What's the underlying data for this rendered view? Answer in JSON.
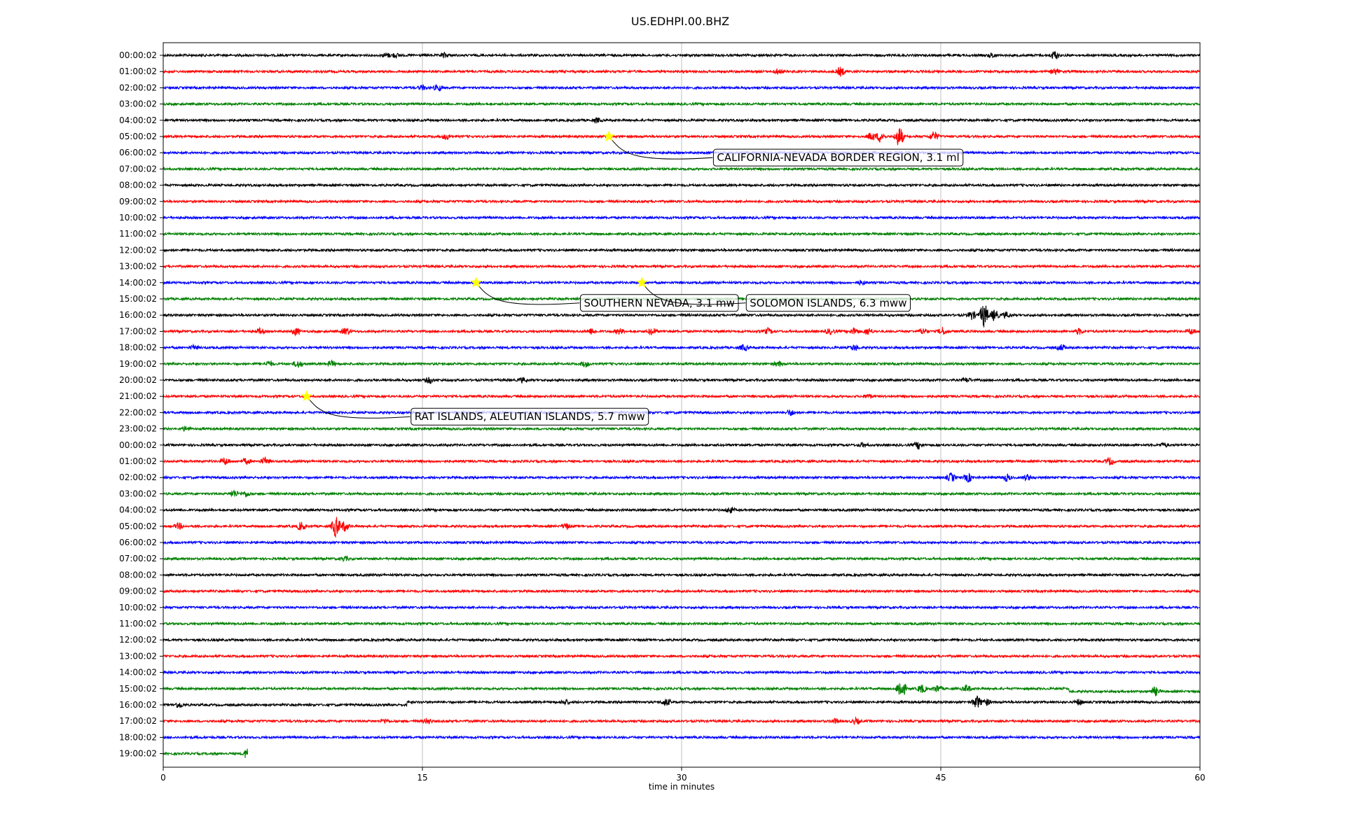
{
  "chart_data": {
    "type": "line",
    "title": "US.EDHPI.00.BHZ",
    "xlabel": "time in minutes",
    "ylabel": "",
    "xlim": [
      0,
      60
    ],
    "xticks": [
      0,
      15,
      30,
      45,
      60
    ],
    "xtick_labels": [
      "0",
      "15",
      "30",
      "45",
      "60"
    ],
    "grid": "vertical",
    "color_cycle": [
      "#000000",
      "#ff0000",
      "#0000ff",
      "#008000"
    ],
    "rows": [
      {
        "label": "00:00:02",
        "events": [
          [
            12.9,
            3
          ],
          [
            13.4,
            3
          ],
          [
            16.3,
            3
          ],
          [
            48.0,
            3
          ],
          [
            51.6,
            6
          ]
        ]
      },
      {
        "label": "01:00:02",
        "events": [
          [
            35.6,
            4
          ],
          [
            39.2,
            6
          ],
          [
            51.6,
            4
          ]
        ]
      },
      {
        "label": "02:00:02",
        "events": [
          [
            15.0,
            3
          ],
          [
            15.9,
            4
          ]
        ]
      },
      {
        "label": "03:00:02",
        "events": []
      },
      {
        "label": "04:00:02",
        "events": [
          [
            25.1,
            3
          ]
        ]
      },
      {
        "label": "05:00:02",
        "events": [
          [
            16.4,
            4
          ],
          [
            41.0,
            6
          ],
          [
            41.5,
            8
          ],
          [
            42.6,
            15
          ],
          [
            44.6,
            7
          ]
        ]
      },
      {
        "label": "06:00:02",
        "events": []
      },
      {
        "label": "07:00:02",
        "events": []
      },
      {
        "label": "08:00:02",
        "events": []
      },
      {
        "label": "09:00:02",
        "events": []
      },
      {
        "label": "10:00:02",
        "events": []
      },
      {
        "label": "11:00:02",
        "events": []
      },
      {
        "label": "12:00:02",
        "events": []
      },
      {
        "label": "13:00:02",
        "events": []
      },
      {
        "label": "14:00:02",
        "events": [
          [
            40.4,
            3
          ]
        ]
      },
      {
        "label": "15:00:02",
        "events": []
      },
      {
        "label": "16:00:02",
        "events": [
          [
            46.8,
            6
          ],
          [
            47.5,
            18
          ],
          [
            48.1,
            8
          ],
          [
            48.8,
            4
          ]
        ]
      },
      {
        "label": "17:00:02",
        "events": [
          [
            5.6,
            4
          ],
          [
            7.7,
            5
          ],
          [
            10.6,
            5
          ],
          [
            24.8,
            4
          ],
          [
            26.4,
            4
          ],
          [
            28.3,
            5
          ],
          [
            35.0,
            4
          ],
          [
            38.6,
            4
          ],
          [
            40.0,
            5
          ],
          [
            40.8,
            5
          ],
          [
            44.0,
            4
          ],
          [
            45.1,
            5
          ],
          [
            53.0,
            4
          ],
          [
            59.5,
            4
          ]
        ]
      },
      {
        "label": "18:00:02",
        "events": [
          [
            1.8,
            3
          ],
          [
            33.6,
            4
          ],
          [
            40.0,
            4
          ],
          [
            52.0,
            4
          ]
        ]
      },
      {
        "label": "19:00:02",
        "events": [
          [
            6.1,
            4
          ],
          [
            7.8,
            5
          ],
          [
            9.7,
            4
          ],
          [
            24.4,
            4
          ],
          [
            35.6,
            3
          ]
        ]
      },
      {
        "label": "20:00:02",
        "events": [
          [
            15.4,
            4
          ],
          [
            20.8,
            3
          ],
          [
            46.5,
            3
          ]
        ]
      },
      {
        "label": "21:00:02",
        "events": [
          [
            40.8,
            3
          ]
        ]
      },
      {
        "label": "22:00:02",
        "events": [
          [
            36.3,
            4
          ]
        ]
      },
      {
        "label": "23:00:02",
        "events": [
          [
            1.3,
            3
          ]
        ]
      },
      {
        "label": "00:00:02",
        "events": [
          [
            40.5,
            3
          ],
          [
            43.7,
            5
          ],
          [
            57.9,
            3
          ]
        ]
      },
      {
        "label": "01:00:02",
        "events": [
          [
            3.6,
            5
          ],
          [
            4.8,
            4
          ],
          [
            5.9,
            5
          ],
          [
            54.8,
            5
          ]
        ]
      },
      {
        "label": "02:00:02",
        "events": [
          [
            45.6,
            6
          ],
          [
            46.6,
            6
          ],
          [
            48.8,
            5
          ],
          [
            50.0,
            4
          ]
        ]
      },
      {
        "label": "03:00:02",
        "events": [
          [
            4.1,
            5
          ],
          [
            4.8,
            4
          ]
        ]
      },
      {
        "label": "04:00:02",
        "events": [
          [
            32.8,
            4
          ]
        ]
      },
      {
        "label": "05:00:02",
        "events": [
          [
            0.9,
            4
          ],
          [
            8.0,
            6
          ],
          [
            10.0,
            16
          ],
          [
            10.5,
            7
          ],
          [
            23.3,
            4
          ]
        ]
      },
      {
        "label": "06:00:02",
        "events": []
      },
      {
        "label": "07:00:02",
        "events": [
          [
            10.5,
            3
          ]
        ]
      },
      {
        "label": "08:00:02",
        "events": []
      },
      {
        "label": "09:00:02",
        "events": []
      },
      {
        "label": "10:00:02",
        "events": []
      },
      {
        "label": "11:00:02",
        "events": []
      },
      {
        "label": "12:00:02",
        "events": []
      },
      {
        "label": "13:00:02",
        "events": []
      },
      {
        "label": "14:00:02",
        "events": []
      },
      {
        "label": "15:00:02",
        "events": [
          [
            42.7,
            16
          ],
          [
            43.9,
            6
          ],
          [
            44.8,
            5
          ],
          [
            46.5,
            5
          ],
          [
            57.4,
            6
          ]
        ]
      },
      {
        "label": "16:00:02",
        "events": [
          [
            0.9,
            4
          ],
          [
            23.3,
            3
          ],
          [
            29.1,
            5
          ],
          [
            47.1,
            9
          ],
          [
            47.6,
            5
          ],
          [
            53.0,
            4
          ]
        ]
      },
      {
        "label": "17:00:02",
        "events": [
          [
            12.8,
            3
          ],
          [
            15.3,
            4
          ],
          [
            38.9,
            3
          ],
          [
            40.1,
            4
          ]
        ]
      },
      {
        "label": "18:00:02",
        "events": []
      },
      {
        "label": "19:00:02",
        "events": [
          [
            4.9,
            9
          ]
        ]
      }
    ],
    "baseline_shifts": [
      {
        "row": 39,
        "at_minute": 52.4,
        "offset": 4
      },
      {
        "row": 40,
        "at_minute": 14.1,
        "offset": -4
      }
    ],
    "trace_end_minute_last_row": 4.9,
    "annotations": [
      {
        "text": "CALIFORNIA-NEVADA BORDER REGION, 3.1 ml",
        "row": 5,
        "minute": 25.8,
        "text_row": 6.3,
        "text_minute": 31.8
      },
      {
        "text": "SOUTHERN NEVADA, 3.1 mw",
        "row": 14,
        "minute": 18.1,
        "text_row": 15.25,
        "text_minute": 24.1
      },
      {
        "text": "SOLOMON ISLANDS, 6.3 mww",
        "row": 14,
        "minute": 27.7,
        "text_row": 15.25,
        "text_minute": 33.7
      },
      {
        "text": "RAT ISLANDS, ALEUTIAN ISLANDS, 5.7 mww",
        "row": 21,
        "minute": 8.3,
        "text_row": 22.25,
        "text_minute": 14.3
      }
    ],
    "marker": {
      "shape": "star",
      "color": "#ffff00"
    }
  }
}
